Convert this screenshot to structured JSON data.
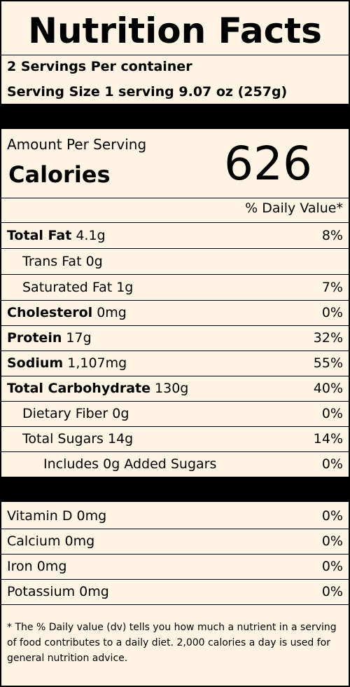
{
  "title": "Nutrition Facts",
  "servings_per_container": "2 Servings Per container",
  "serving_size": "Serving Size 1 serving 9.07 oz (257g)",
  "amount_per_serving": "Amount Per Serving",
  "calories_label": "Calories",
  "calories_value": "626",
  "dv_header": "% Daily Value*",
  "nutrients": [
    {
      "name": "Total Fat",
      "amount": "4.1g",
      "dv": "8%"
    },
    {
      "name": "Trans Fat",
      "amount": "0g",
      "dv": ""
    },
    {
      "name": "Saturated Fat",
      "amount": "1g",
      "dv": "7%"
    },
    {
      "name": "Cholesterol",
      "amount": "0mg",
      "dv": "0%"
    },
    {
      "name": "Protein",
      "amount": "17g",
      "dv": "32%"
    },
    {
      "name": "Sodium",
      "amount": "1,107mg",
      "dv": "55%"
    },
    {
      "name": "Total Carbohydrate",
      "amount": "130g",
      "dv": "40%"
    },
    {
      "name": "Dietary Fiber",
      "amount": "0g",
      "dv": "0%"
    },
    {
      "name": "Total Sugars",
      "amount": "14g",
      "dv": "14%"
    },
    {
      "name": "Includes 0g Added Sugars",
      "amount": "",
      "dv": "0%"
    }
  ],
  "vitamins": [
    {
      "name": "Vitamin D",
      "amount": "0mg",
      "dv": "0%"
    },
    {
      "name": "Calcium",
      "amount": "0mg",
      "dv": "0%"
    },
    {
      "name": "Iron",
      "amount": "0mg",
      "dv": "0%"
    },
    {
      "name": "Potassium",
      "amount": "0mg",
      "dv": "0%"
    }
  ],
  "footnote": "* The % Daily value (dv) tells you how much a nutrient in a serving of food contributes to a daily diet. 2,000 calories a day is used for general nutrition advice."
}
